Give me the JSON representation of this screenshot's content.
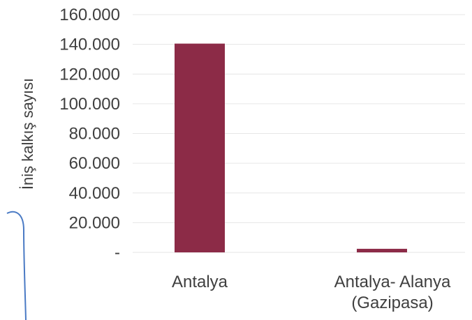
{
  "chart_data": {
    "type": "bar",
    "title": "",
    "xlabel": "",
    "ylabel": "İniş kalkış sayısı",
    "categories": [
      [
        "Antalya"
      ],
      [
        "Antalya- Alanya",
        "(Gazipasa)"
      ]
    ],
    "values": [
      140500,
      2400
    ],
    "ylim": [
      0,
      160000
    ],
    "yticks": [
      0,
      20000,
      40000,
      60000,
      80000,
      100000,
      120000,
      140000,
      160000
    ],
    "ytick_labels": [
      "-",
      "20.000",
      "40.000",
      "60.000",
      "80.000",
      "100.000",
      "120.000",
      "140.000",
      "160.000"
    ],
    "grid": true,
    "bar_color": "#8c2b47",
    "grid_color": "#e6e6e6",
    "decoration_color": "#4a7ac4"
  }
}
